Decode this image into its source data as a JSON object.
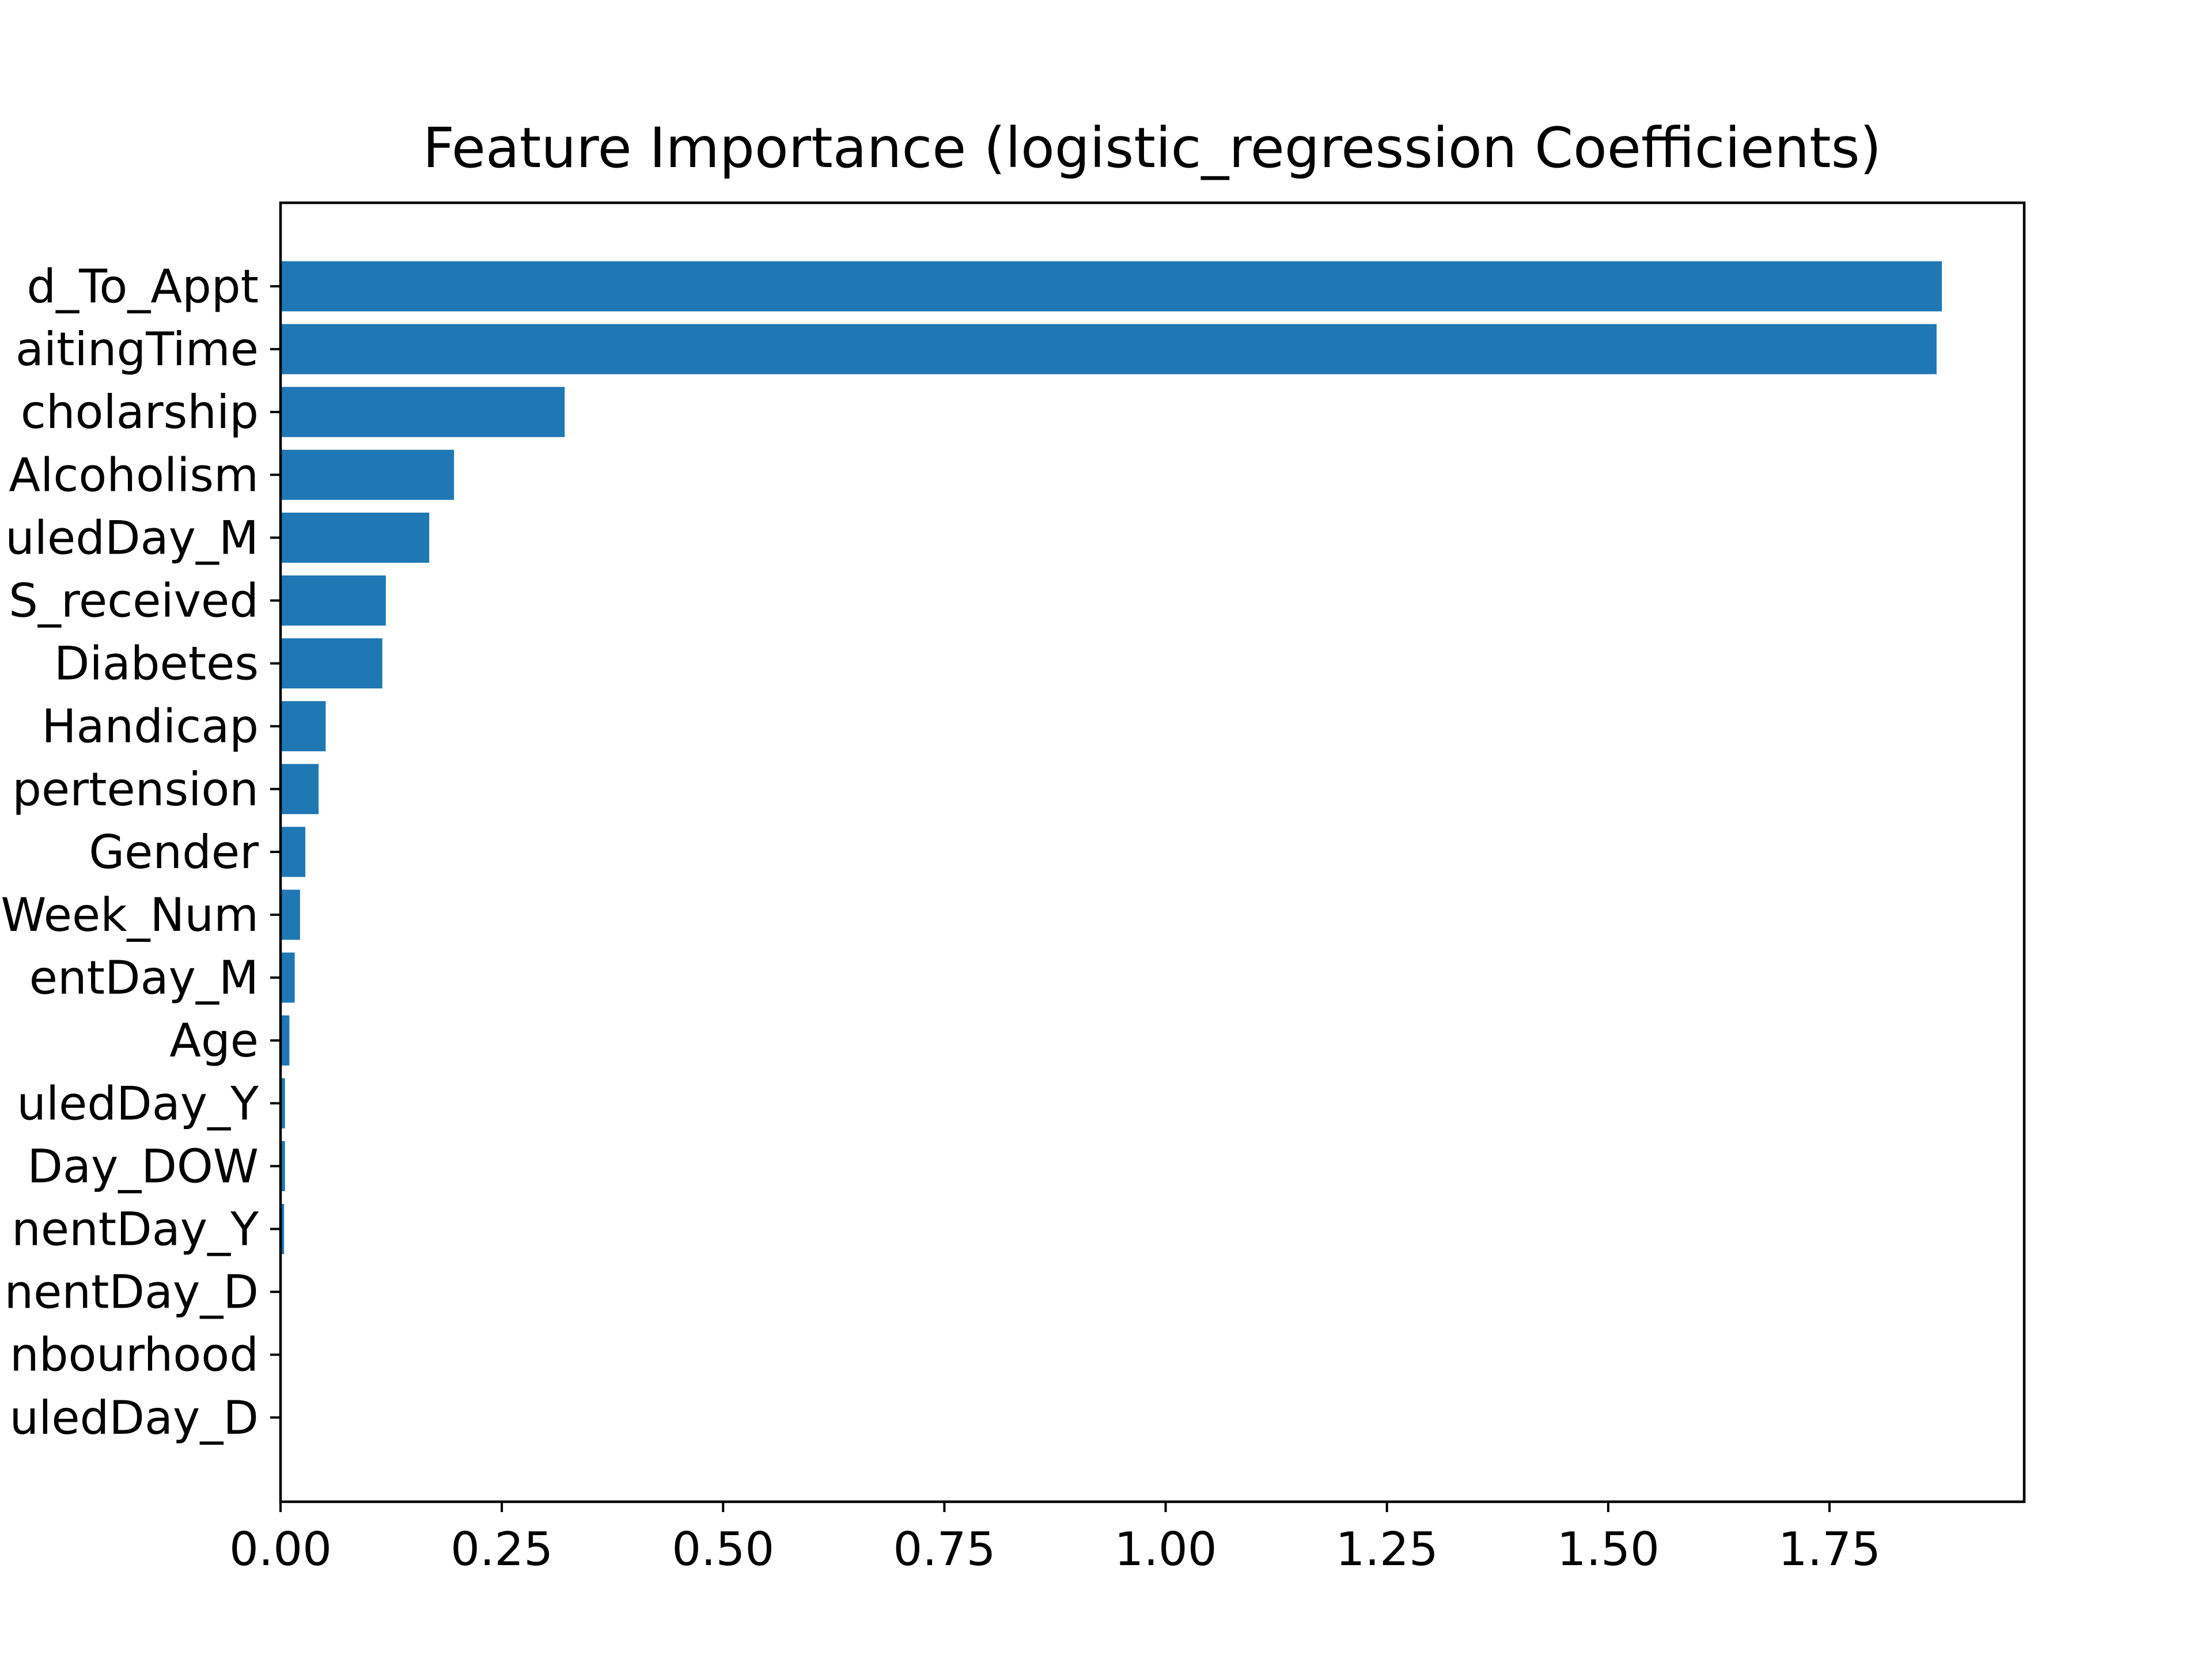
{
  "chart_data": {
    "type": "bar",
    "orientation": "horizontal",
    "title": "Feature Importance (logistic_regression Coefficients)",
    "xlabel": "",
    "ylabel": "",
    "xlim": [
      0,
      1.97
    ],
    "grid": false,
    "bar_color": "#1f77b4",
    "categories": [
      "d_To_Appt",
      "aitingTime",
      "cholarship",
      "Alcoholism",
      "uledDay_M",
      "S_received",
      "Diabetes",
      "Handicap",
      "pertension",
      "Gender",
      "Week_Num",
      "entDay_M",
      "Age",
      "uledDay_Y",
      "Day_DOW",
      "nentDay_Y",
      "nentDay_D",
      "nbourhood",
      "uledDay_D"
    ],
    "values": [
      1.877,
      1.871,
      0.321,
      0.196,
      0.168,
      0.119,
      0.115,
      0.051,
      0.043,
      0.028,
      0.022,
      0.016,
      0.01,
      0.005,
      0.005,
      0.004,
      0.001,
      0.001,
      0.001
    ],
    "x_ticks": [
      "0.00",
      "0.25",
      "0.50",
      "0.75",
      "1.00",
      "1.25",
      "1.50",
      "1.75"
    ]
  }
}
